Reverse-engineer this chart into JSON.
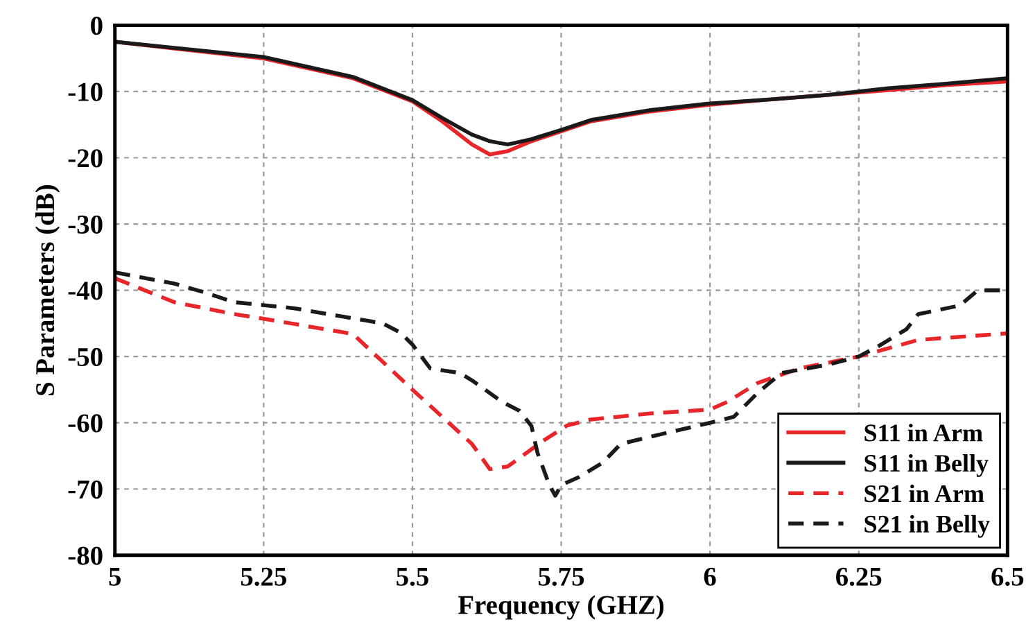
{
  "chart_data": {
    "type": "line",
    "xlabel": "Frequency (GHZ)",
    "ylabel": "S Parameters (dB)",
    "xlim": [
      5,
      6.5
    ],
    "xticks": [
      5,
      5.25,
      5.5,
      5.75,
      6,
      6.25,
      6.5
    ],
    "ylim": [
      -80,
      0
    ],
    "yticks": [
      -80,
      -70,
      -60,
      -50,
      -40,
      -30,
      -20,
      -10,
      0
    ],
    "grid": true,
    "legend": "bottom right",
    "marker": "none",
    "series": [
      {
        "name": "S11 in Arm",
        "color": "#e8262a",
        "line_style": "solid",
        "x": [
          5,
          5.25,
          5.4,
          5.5,
          5.55,
          5.6,
          5.63,
          5.66,
          5.7,
          5.75,
          5.8,
          5.9,
          6.0,
          6.1,
          6.2,
          6.3,
          6.4,
          6.5
        ],
        "values": [
          -2.5,
          -5,
          -8,
          -11.5,
          -14.5,
          -18,
          -19.5,
          -19,
          -17.5,
          -16,
          -14.5,
          -13,
          -12,
          -11.2,
          -10.5,
          -9.8,
          -9,
          -8.5
        ]
      },
      {
        "name": "S11 in Belly",
        "color": "#1a1a1a",
        "line_style": "solid",
        "x": [
          5,
          5.25,
          5.4,
          5.5,
          5.55,
          5.6,
          5.63,
          5.66,
          5.7,
          5.75,
          5.8,
          5.9,
          6.0,
          6.1,
          6.2,
          6.3,
          6.4,
          6.5
        ],
        "values": [
          -2.5,
          -4.8,
          -7.8,
          -11.3,
          -14,
          -16.5,
          -17.5,
          -18,
          -17.2,
          -15.8,
          -14.3,
          -12.8,
          -11.8,
          -11.2,
          -10.5,
          -9.5,
          -8.8,
          -8
        ]
      },
      {
        "name": "S21 in Arm",
        "color": "#e8262a",
        "line_style": "dashed",
        "x": [
          5,
          5.1,
          5.2,
          5.25,
          5.4,
          5.5,
          5.6,
          5.63,
          5.66,
          5.72,
          5.76,
          5.8,
          5.9,
          6.0,
          6.03,
          6.08,
          6.15,
          6.25,
          6.35,
          6.5
        ],
        "values": [
          -38.2,
          -41.8,
          -43.6,
          -44.3,
          -46.6,
          -55,
          -63.2,
          -67,
          -66.6,
          -62.7,
          -60.4,
          -59.5,
          -58.6,
          -58,
          -56.8,
          -54,
          -51.8,
          -50,
          -47.5,
          -46.5
        ]
      },
      {
        "name": "S21 in Belly",
        "color": "#1a1a1a",
        "line_style": "dashed",
        "x": [
          5,
          5.1,
          5.15,
          5.2,
          5.3,
          5.45,
          5.48,
          5.5,
          5.53,
          5.58,
          5.6,
          5.65,
          5.68,
          5.7,
          5.71,
          5.73,
          5.74,
          5.75,
          5.78,
          5.82,
          5.85,
          5.9,
          6.0,
          6.04,
          6.08,
          6.12,
          6.2,
          6.25,
          6.28,
          6.33,
          6.35,
          6.42,
          6.45,
          6.5
        ],
        "values": [
          -37.3,
          -39,
          -40.3,
          -41.8,
          -42.7,
          -45,
          -46.4,
          -48.2,
          -51.8,
          -52.5,
          -53.6,
          -56.8,
          -58.2,
          -60.5,
          -64.5,
          -69.4,
          -71,
          -69.4,
          -68.2,
          -66,
          -63.2,
          -62.1,
          -60,
          -59.1,
          -55.5,
          -52.5,
          -51.2,
          -50,
          -48.6,
          -45.9,
          -43.6,
          -42.3,
          -40,
          -40
        ]
      }
    ]
  }
}
